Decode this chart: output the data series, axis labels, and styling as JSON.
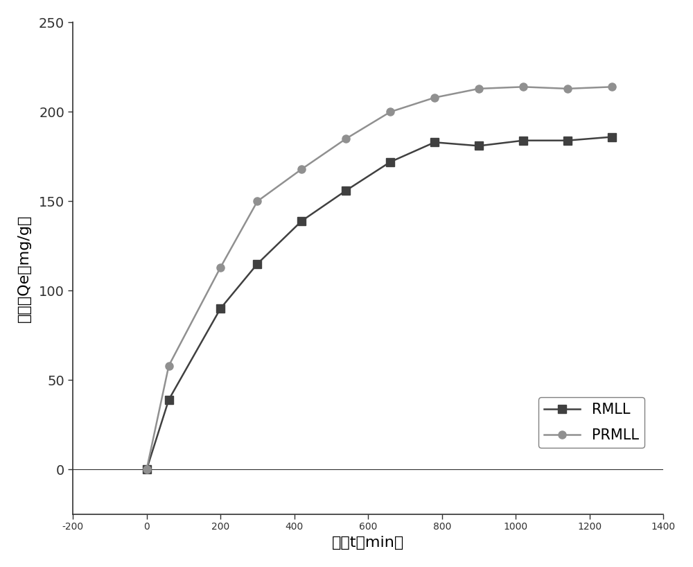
{
  "rmll_x": [
    0,
    60,
    200,
    300,
    420,
    540,
    660,
    780,
    900,
    1020,
    1140,
    1260
  ],
  "rmll_y": [
    0,
    39,
    90,
    115,
    139,
    156,
    172,
    183,
    181,
    184,
    184,
    186
  ],
  "prmll_x": [
    0,
    60,
    200,
    300,
    420,
    540,
    660,
    780,
    900,
    1020,
    1140,
    1260
  ],
  "prmll_y": [
    0,
    58,
    113,
    150,
    168,
    185,
    200,
    208,
    213,
    214,
    213,
    214
  ],
  "rmll_color": "#404040",
  "prmll_color": "#909090",
  "rmll_label": "RMLL",
  "prmll_label": "PRMLL",
  "xlabel": "时间t（min）",
  "ylabel": "吸附量Qe（mg/g）",
  "xlim": [
    -200,
    1400
  ],
  "ylim": [
    -25,
    250
  ],
  "xticks": [
    -200,
    0,
    200,
    400,
    600,
    800,
    1000,
    1200,
    1400
  ],
  "yticks": [
    0,
    50,
    100,
    150,
    200,
    250
  ],
  "figure_facecolor": "#ffffff",
  "linewidth": 1.8,
  "markersize": 8,
  "legend_fontsize": 15,
  "tick_fontsize": 14,
  "label_fontsize": 16
}
